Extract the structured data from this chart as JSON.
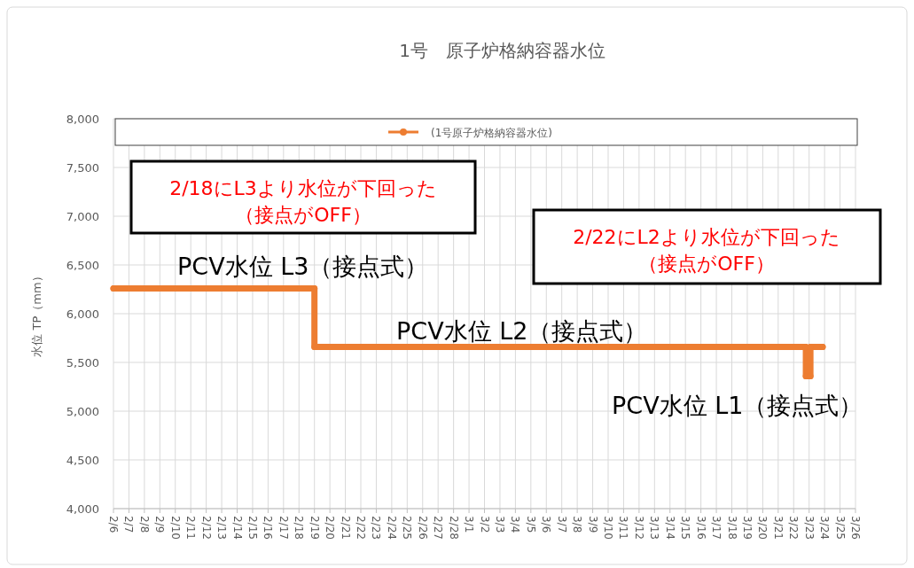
{
  "chart_data": {
    "type": "line",
    "title": "1号　原子炉格納容器水位",
    "ylabel": "水位 TP（mm）",
    "series": [
      {
        "name": "(1号原子炉格納容器水位)",
        "color": "#ed7d31",
        "x": [
          "--02-06",
          "--02-19",
          "--02-19",
          "--03-22T19:00",
          "--03-22T19:00",
          "--03-23T02:00",
          "--03-23T02:00",
          "--03-23T21:00"
        ],
        "values": [
          6260,
          6260,
          5660,
          5660,
          5360,
          5360,
          5660,
          5660
        ]
      }
    ],
    "xlim": [
      "--02-06",
      "--03-26"
    ],
    "xticks": [
      {
        "value": "--02-06",
        "label": "2/6"
      },
      {
        "value": "--02-07",
        "label": "2/7"
      },
      {
        "value": "--02-08",
        "label": "2/8"
      },
      {
        "value": "--02-09",
        "label": "2/9"
      },
      {
        "value": "--02-10",
        "label": "2/10"
      },
      {
        "value": "--02-11",
        "label": "2/11"
      },
      {
        "value": "--02-12",
        "label": "2/12"
      },
      {
        "value": "--02-13",
        "label": "2/13"
      },
      {
        "value": "--02-14",
        "label": "2/14"
      },
      {
        "value": "--02-15",
        "label": "2/15"
      },
      {
        "value": "--02-16",
        "label": "2/16"
      },
      {
        "value": "--02-17",
        "label": "2/17"
      },
      {
        "value": "--02-18",
        "label": "2/18"
      },
      {
        "value": "--02-19",
        "label": "2/19"
      },
      {
        "value": "--02-20",
        "label": "2/20"
      },
      {
        "value": "--02-21",
        "label": "2/21"
      },
      {
        "value": "--02-22",
        "label": "2/22"
      },
      {
        "value": "--02-23",
        "label": "2/23"
      },
      {
        "value": "--02-24",
        "label": "2/24"
      },
      {
        "value": "--02-25",
        "label": "2/25"
      },
      {
        "value": "--02-26",
        "label": "2/26"
      },
      {
        "value": "--02-27",
        "label": "2/27"
      },
      {
        "value": "--02-28",
        "label": "2/28"
      },
      {
        "value": "--03-01",
        "label": "3/1"
      },
      {
        "value": "--03-02",
        "label": "3/2"
      },
      {
        "value": "--03-03",
        "label": "3/3"
      },
      {
        "value": "--03-04",
        "label": "3/4"
      },
      {
        "value": "--03-05",
        "label": "3/5"
      },
      {
        "value": "--03-06",
        "label": "3/6"
      },
      {
        "value": "--03-07",
        "label": "3/7"
      },
      {
        "value": "--03-08",
        "label": "3/8"
      },
      {
        "value": "--03-09",
        "label": "3/9"
      },
      {
        "value": "--03-10",
        "label": "3/10"
      },
      {
        "value": "--03-11",
        "label": "3/11"
      },
      {
        "value": "--03-12",
        "label": "3/12"
      },
      {
        "value": "--03-13",
        "label": "3/13"
      },
      {
        "value": "--03-14",
        "label": "3/14"
      },
      {
        "value": "--03-15",
        "label": "3/15"
      },
      {
        "value": "--03-16",
        "label": "3/16"
      },
      {
        "value": "--03-17",
        "label": "3/17"
      },
      {
        "value": "--03-18",
        "label": "3/18"
      },
      {
        "value": "--03-19",
        "label": "3/19"
      },
      {
        "value": "--03-20",
        "label": "3/20"
      },
      {
        "value": "--03-21",
        "label": "3/21"
      },
      {
        "value": "--03-22",
        "label": "3/22"
      },
      {
        "value": "--03-23",
        "label": "3/23"
      },
      {
        "value": "--03-24",
        "label": "3/24"
      },
      {
        "value": "--03-25",
        "label": "3/25"
      },
      {
        "value": "--03-26",
        "label": "3/26"
      }
    ],
    "ylim": [
      4000,
      8000
    ],
    "yticks": [
      {
        "value": 4000,
        "label": "4,000"
      },
      {
        "value": 4500,
        "label": "4,500"
      },
      {
        "value": 5000,
        "label": "5,000"
      },
      {
        "value": 5500,
        "label": "5,500"
      },
      {
        "value": 6000,
        "label": "6,000"
      },
      {
        "value": 6500,
        "label": "6,500"
      },
      {
        "value": 7000,
        "label": "7,000"
      },
      {
        "value": 7500,
        "label": "7,500"
      },
      {
        "value": 8000,
        "label": "8,000"
      }
    ],
    "grid": true,
    "legend": "top",
    "marker": "circle",
    "line_style": "solid",
    "annotations": [
      "2/18にL3より水位が下回った",
      "（接点がOFF）",
      "2/22にL2より水位が下回った",
      "（接点がOFF）",
      "PCV水位 L3（接点式）",
      "PCV水位 L2（接点式）",
      "PCV水位 L1（接点式）"
    ]
  }
}
